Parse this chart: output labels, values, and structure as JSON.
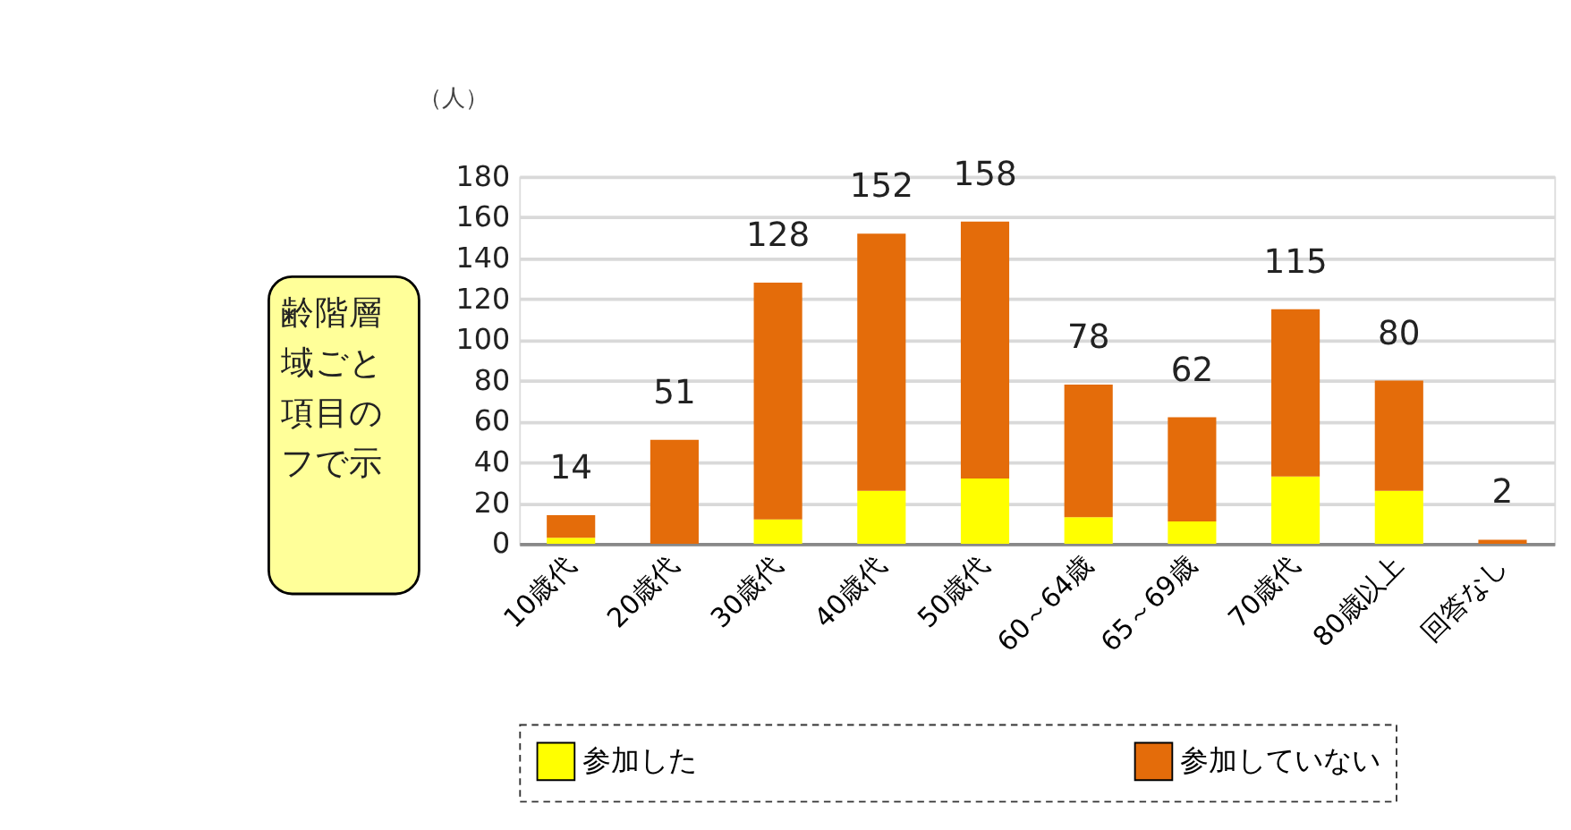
{
  "chart_data": {
    "type": "bar",
    "stacked": true,
    "ylabel": "（人）",
    "categories": [
      "10歳代",
      "20歳代",
      "30歳代",
      "40歳代",
      "50歳代",
      "60～64歳",
      "65～69歳",
      "70歳代",
      "80歳以上",
      "回答なし"
    ],
    "series": [
      {
        "name": "参加した",
        "color": "#ffff00",
        "values": [
          3,
          0,
          12,
          26,
          32,
          13,
          11,
          33,
          26,
          0
        ]
      },
      {
        "name": "参加していない",
        "color": "#e46c0a",
        "values": [
          11,
          51,
          116,
          126,
          126,
          65,
          51,
          82,
          54,
          2
        ]
      }
    ],
    "totals": [
      "14",
      "51",
      "128",
      "152",
      "158",
      "78",
      "62",
      "115",
      "80",
      "2"
    ],
    "ylim": [
      0,
      180
    ],
    "yticks": [
      0,
      20,
      40,
      60,
      80,
      100,
      120,
      140,
      160,
      180
    ],
    "grid": "y",
    "legend": "bottom",
    "annotations": [
      "齢階層域ごと項目のフで示"
    ]
  }
}
